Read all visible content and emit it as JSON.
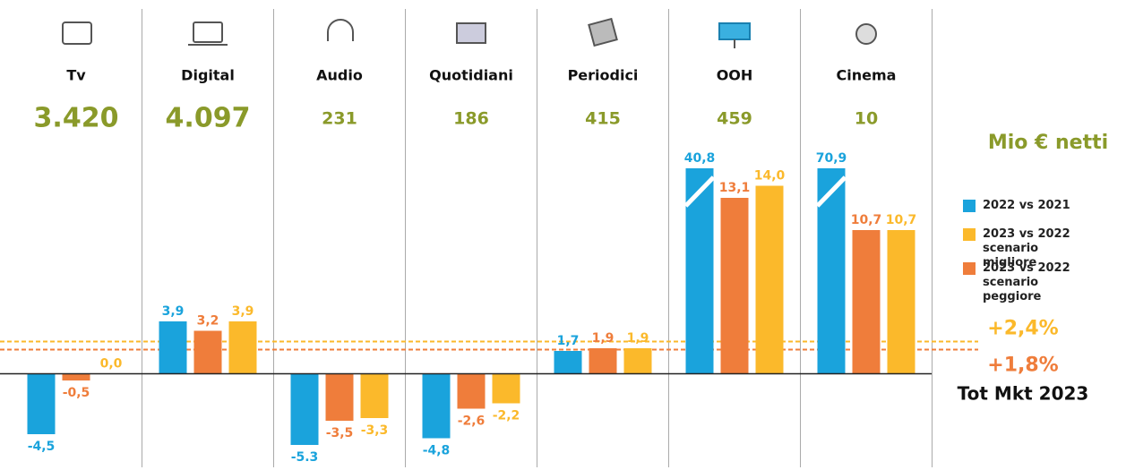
{
  "chart_data": {
    "type": "bar",
    "categories": [
      "Tv",
      "Digital",
      "Audio",
      "Quotidiani",
      "Periodici",
      "OOH",
      "Cinema"
    ],
    "totals": {
      "values": [
        3420,
        4097,
        231,
        186,
        415,
        459,
        10
      ],
      "labels": [
        "3.420",
        "4.097",
        "231",
        "186",
        "415",
        "459",
        "10"
      ]
    },
    "totals_unit": "Mio € netti",
    "series": [
      {
        "name": "2022 vs 2021",
        "color": "#1aa3dc",
        "values": [
          -4.5,
          3.9,
          -5.3,
          -4.8,
          1.7,
          40.8,
          70.9
        ],
        "value_labels": [
          "-4,5",
          "3,9",
          "-5.3",
          "-4,8",
          "1,7",
          "40,8",
          "70,9"
        ]
      },
      {
        "name": "2023 vs 2022 scenario migliore",
        "color": "#fbb92b",
        "values": [
          0,
          3.9,
          -3.3,
          -2.2,
          1.9,
          14.0,
          10.7
        ],
        "value_labels": [
          "0,0",
          "3,9",
          "-3,3",
          "-2,2",
          "1,9",
          "14,0",
          "10,7"
        ]
      },
      {
        "name": "2023 vs 2022 scenario peggiore",
        "color": "#ef7d3b",
        "values": [
          -0.5,
          3.2,
          -3.5,
          -2.6,
          1.9,
          13.1,
          10.7
        ],
        "value_labels": [
          "-0,5",
          "3,2",
          "-3,5",
          "-2,6",
          "1,9",
          "13,1",
          "10,7"
        ]
      }
    ],
    "reference_lines": [
      {
        "value": 2.4,
        "label": "+2,4%",
        "color": "#fbb92b"
      },
      {
        "value": 1.8,
        "label": "+1,8%",
        "color": "#ef7d3b"
      }
    ],
    "reference_caption": "Tot Mkt 2023",
    "ylim": [
      -6.7,
      15.3
    ],
    "legend": "right"
  }
}
